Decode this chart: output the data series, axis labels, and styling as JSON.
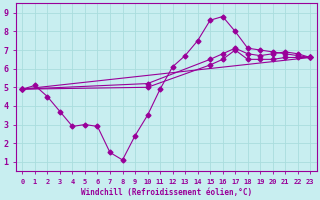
{
  "xlabel": "Windchill (Refroidissement éolien,°C)",
  "background_color": "#c8eef0",
  "line_color": "#990099",
  "grid_color": "#aadddd",
  "xlim": [
    -0.5,
    23.5
  ],
  "ylim": [
    0.5,
    9.5
  ],
  "xticks": [
    0,
    1,
    2,
    3,
    4,
    5,
    6,
    7,
    8,
    9,
    10,
    11,
    12,
    13,
    14,
    15,
    16,
    17,
    18,
    19,
    20,
    21,
    22,
    23
  ],
  "yticks": [
    1,
    2,
    3,
    4,
    5,
    6,
    7,
    8,
    9
  ],
  "series": [
    {
      "x": [
        0,
        1,
        2,
        3,
        4,
        5,
        6,
        7,
        8,
        9,
        10,
        11,
        12,
        13,
        14,
        15,
        16,
        17,
        18,
        19,
        20,
        21,
        22,
        23
      ],
      "y": [
        4.9,
        5.1,
        4.5,
        3.7,
        2.9,
        3.0,
        2.9,
        1.5,
        1.1,
        2.4,
        3.5,
        4.9,
        6.1,
        6.7,
        7.5,
        8.6,
        8.8,
        8.0,
        7.1,
        7.0,
        6.9,
        6.8,
        6.7,
        6.6
      ],
      "marker": "D",
      "markersize": 2.5,
      "linewidth": 0.8
    },
    {
      "x": [
        0,
        23
      ],
      "y": [
        4.9,
        6.6
      ],
      "marker": "D",
      "markersize": 2.5,
      "linewidth": 0.8
    },
    {
      "x": [
        0,
        10,
        15,
        16,
        17,
        18,
        19,
        20,
        21,
        22,
        23
      ],
      "y": [
        4.9,
        5.2,
        6.5,
        6.8,
        7.1,
        6.8,
        6.7,
        6.8,
        6.9,
        6.8,
        6.6
      ],
      "marker": "D",
      "markersize": 2.5,
      "linewidth": 0.8
    },
    {
      "x": [
        0,
        10,
        15,
        16,
        17,
        18,
        19,
        20,
        21,
        22,
        23
      ],
      "y": [
        4.9,
        5.0,
        6.2,
        6.5,
        7.0,
        6.5,
        6.5,
        6.5,
        6.6,
        6.6,
        6.6
      ],
      "marker": "D",
      "markersize": 2.5,
      "linewidth": 0.8
    }
  ]
}
